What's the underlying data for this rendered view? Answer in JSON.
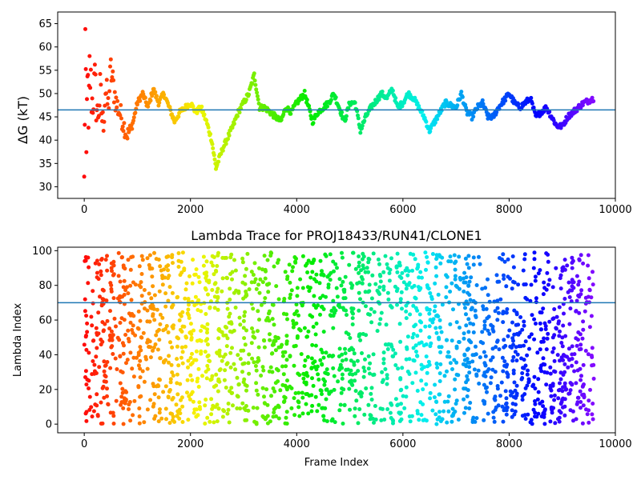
{
  "chart_data": [
    {
      "type": "scatter",
      "title": "",
      "xlabel": "",
      "ylabel": "ΔG (kT)",
      "xlim": [
        -500,
        10000
      ],
      "ylim": [
        27.5,
        67.5
      ],
      "xticks": [
        0,
        2000,
        4000,
        6000,
        8000,
        10000
      ],
      "yticks": [
        30,
        35,
        40,
        45,
        50,
        55,
        60,
        65
      ],
      "xtick_labels": [
        "0",
        "2000",
        "4000",
        "6000",
        "8000",
        "10000"
      ],
      "ytick_labels": [
        "30",
        "35",
        "40",
        "45",
        "50",
        "55",
        "60",
        "65"
      ],
      "hline": 46.5,
      "hline_color": "#1f77b4",
      "colormap": "rainbow (red at start → violet at end)",
      "grid": false,
      "x_range": [
        0,
        9600
      ],
      "trace_points": [
        [
          0,
          30
        ],
        [
          20,
          62
        ],
        [
          40,
          35
        ],
        [
          60,
          58
        ],
        [
          80,
          40
        ],
        [
          100,
          55
        ],
        [
          150,
          48
        ],
        [
          200,
          52
        ],
        [
          250,
          45
        ],
        [
          300,
          50
        ],
        [
          350,
          43
        ],
        [
          400,
          51
        ],
        [
          450,
          47
        ],
        [
          500,
          55
        ],
        [
          600,
          48
        ],
        [
          700,
          45
        ],
        [
          800,
          41
        ],
        [
          900,
          43
        ],
        [
          1000,
          48
        ],
        [
          1100,
          50
        ],
        [
          1200,
          47
        ],
        [
          1300,
          51
        ],
        [
          1400,
          48
        ],
        [
          1500,
          50
        ],
        [
          1600,
          47
        ],
        [
          1700,
          44
        ],
        [
          1800,
          46
        ],
        [
          1900,
          47
        ],
        [
          2000,
          48
        ],
        [
          2100,
          46
        ],
        [
          2200,
          47
        ],
        [
          2300,
          44
        ],
        [
          2400,
          40
        ],
        [
          2480,
          34
        ],
        [
          2600,
          38
        ],
        [
          2800,
          43
        ],
        [
          2900,
          46
        ],
        [
          3000,
          48
        ],
        [
          3100,
          50
        ],
        [
          3200,
          54
        ],
        [
          3300,
          47
        ],
        [
          3400,
          47
        ],
        [
          3600,
          45
        ],
        [
          3700,
          44
        ],
        [
          3800,
          47
        ],
        [
          3900,
          46
        ],
        [
          4000,
          48
        ],
        [
          4150,
          50
        ],
        [
          4300,
          44
        ],
        [
          4400,
          46
        ],
        [
          4600,
          48
        ],
        [
          4700,
          50
        ],
        [
          4800,
          47
        ],
        [
          4900,
          44
        ],
        [
          5000,
          48
        ],
        [
          5100,
          48
        ],
        [
          5200,
          42
        ],
        [
          5300,
          45
        ],
        [
          5400,
          47
        ],
        [
          5600,
          50
        ],
        [
          5700,
          49
        ],
        [
          5800,
          51
        ],
        [
          5900,
          47
        ],
        [
          6000,
          48
        ],
        [
          6100,
          50
        ],
        [
          6200,
          49
        ],
        [
          6300,
          47
        ],
        [
          6400,
          45
        ],
        [
          6500,
          42
        ],
        [
          6600,
          44
        ],
        [
          6800,
          48
        ],
        [
          7000,
          47
        ],
        [
          7100,
          50
        ],
        [
          7200,
          46
        ],
        [
          7300,
          45
        ],
        [
          7400,
          47
        ],
        [
          7500,
          48
        ],
        [
          7600,
          45
        ],
        [
          7700,
          45
        ],
        [
          7800,
          47
        ],
        [
          8000,
          50
        ],
        [
          8100,
          48
        ],
        [
          8200,
          47
        ],
        [
          8400,
          49
        ],
        [
          8500,
          45
        ],
        [
          8700,
          47
        ],
        [
          8900,
          43
        ],
        [
          9000,
          43
        ],
        [
          9100,
          45
        ],
        [
          9300,
          47
        ],
        [
          9400,
          48
        ],
        [
          9600,
          49
        ]
      ]
    },
    {
      "type": "scatter",
      "title": "Lambda Trace for PROJ18433/RUN41/CLONE1",
      "xlabel": "Frame Index",
      "ylabel": "Lambda Index",
      "xlim": [
        -500,
        10000
      ],
      "ylim": [
        -5,
        102
      ],
      "xticks": [
        0,
        2000,
        4000,
        6000,
        8000,
        10000
      ],
      "yticks": [
        0,
        20,
        40,
        60,
        80,
        100
      ],
      "xtick_labels": [
        "0",
        "2000",
        "4000",
        "6000",
        "8000",
        "10000"
      ],
      "ytick_labels": [
        "0",
        "20",
        "40",
        "60",
        "80",
        "100"
      ],
      "hline": 70,
      "hline_color": "#1f77b4",
      "colormap": "rainbow (red at start → violet at end)",
      "grid": false,
      "x_range": [
        0,
        9600
      ],
      "y_range": [
        0,
        99
      ]
    }
  ]
}
